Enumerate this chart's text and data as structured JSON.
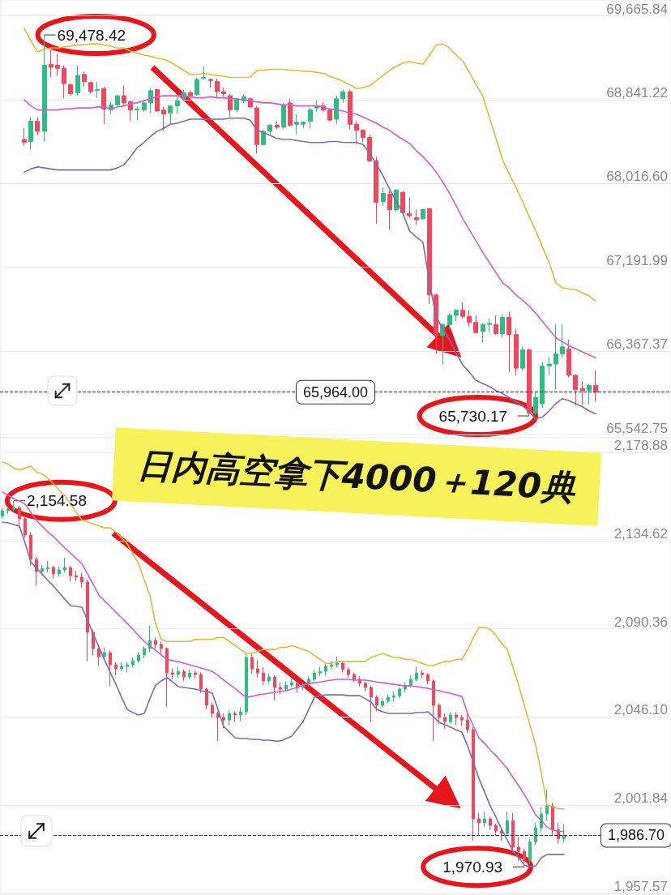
{
  "chart_data": [
    {
      "type": "candlestick",
      "title": "日内高空拿下4000＋120典",
      "categories": [
        null,
        null,
        null,
        null,
        null,
        null,
        null,
        null,
        null,
        null,
        null,
        null,
        null,
        null,
        null,
        null,
        null,
        null,
        null,
        null,
        null,
        null,
        null,
        null,
        null,
        null,
        null,
        null,
        null,
        null,
        null,
        null,
        null,
        null,
        null,
        null,
        null,
        null,
        null,
        null,
        null,
        null,
        null,
        null,
        null,
        null,
        null,
        null,
        null,
        null,
        null,
        null,
        null,
        null,
        null,
        null,
        null,
        null,
        null,
        null,
        null,
        null,
        null,
        null,
        null,
        null,
        null,
        null,
        null,
        null,
        null,
        null,
        null,
        null,
        null,
        null,
        null,
        null,
        null,
        null,
        null,
        null,
        null,
        null,
        null,
        null,
        null
      ],
      "ohlc": [
        [
          68450,
          68560,
          68390,
          68420
        ],
        [
          68430,
          68670,
          68350,
          68630
        ],
        [
          68630,
          68670,
          68490,
          68530
        ],
        [
          68530,
          69478.42,
          68430,
          69180
        ],
        [
          69190,
          69330,
          69060,
          69160
        ],
        [
          69180,
          69290,
          69080,
          69150
        ],
        [
          69150,
          69180,
          68860,
          69000
        ],
        [
          68990,
          69000,
          68880,
          68900
        ],
        [
          68910,
          69180,
          68880,
          69080
        ],
        [
          69090,
          69120,
          68970,
          69020
        ],
        [
          69010,
          69020,
          68900,
          68920
        ],
        [
          68930,
          69020,
          68860,
          68940
        ],
        [
          68950,
          68970,
          68600,
          68750
        ],
        [
          68740,
          68820,
          68700,
          68790
        ],
        [
          68790,
          68880,
          68780,
          68880
        ],
        [
          68880,
          68980,
          68790,
          68810
        ],
        [
          68820,
          68830,
          68630,
          68740
        ],
        [
          68740,
          68780,
          68640,
          68750
        ],
        [
          68740,
          68820,
          68720,
          68810
        ],
        [
          68810,
          68950,
          68710,
          68930
        ],
        [
          68940,
          68950,
          68720,
          68730
        ],
        [
          68740,
          68770,
          68530,
          68700
        ],
        [
          68710,
          68780,
          68600,
          68780
        ],
        [
          68780,
          68870,
          68700,
          68830
        ],
        [
          68850,
          68940,
          68830,
          68910
        ],
        [
          68910,
          68930,
          68850,
          68880
        ],
        [
          68890,
          69060,
          68880,
          69040
        ],
        [
          69050,
          69170,
          69040,
          69060
        ],
        [
          69040,
          69050,
          68960,
          69030
        ],
        [
          69020,
          69050,
          68860,
          68920
        ],
        [
          68920,
          68960,
          68870,
          68900
        ],
        [
          68880,
          68900,
          68670,
          68740
        ],
        [
          68740,
          68850,
          68720,
          68840
        ],
        [
          68830,
          68890,
          68810,
          68870
        ],
        [
          68850,
          68860,
          68760,
          68770
        ],
        [
          68760,
          68780,
          68310,
          68400
        ],
        [
          68400,
          68550,
          68390,
          68530
        ],
        [
          68530,
          68600,
          68500,
          68590
        ],
        [
          68590,
          68630,
          68550,
          68570
        ],
        [
          68570,
          68810,
          68550,
          68790
        ],
        [
          68810,
          68850,
          68580,
          68590
        ],
        [
          68600,
          68700,
          68500,
          68620
        ],
        [
          68600,
          68630,
          68560,
          68620
        ],
        [
          68630,
          68760,
          68560,
          68740
        ],
        [
          68760,
          68830,
          68720,
          68780
        ],
        [
          68780,
          68820,
          68720,
          68740
        ],
        [
          68740,
          68750,
          68630,
          68640
        ],
        [
          68650,
          68880,
          68600,
          68850
        ],
        [
          68850,
          68940,
          68810,
          68920
        ],
        [
          68920,
          68940,
          68550,
          68600
        ],
        [
          68600,
          68630,
          68400,
          68540
        ],
        [
          68540,
          68550,
          68420,
          68470
        ],
        [
          68470,
          68500,
          68230,
          68240
        ],
        [
          68240,
          68280,
          67620,
          67830
        ],
        [
          67840,
          67980,
          67800,
          67920
        ],
        [
          67910,
          67950,
          67560,
          67760
        ],
        [
          67760,
          67960,
          67740,
          67950
        ],
        [
          67930,
          67940,
          67720,
          67730
        ],
        [
          67720,
          67880,
          67680,
          67700
        ],
        [
          67680,
          67760,
          67610,
          67660
        ],
        [
          67670,
          67770,
          67660,
          67760
        ],
        [
          67770,
          67770,
          66830,
          66920
        ],
        [
          66920,
          66930,
          66340,
          66520
        ],
        [
          66520,
          66640,
          66240,
          66630
        ],
        [
          66630,
          66740,
          66590,
          66720
        ],
        [
          66720,
          66780,
          66660,
          66770
        ],
        [
          66770,
          66850,
          66690,
          66710
        ],
        [
          66710,
          66770,
          66610,
          66650
        ],
        [
          66650,
          66720,
          66540,
          66550
        ],
        [
          66560,
          66640,
          66450,
          66630
        ],
        [
          66630,
          66690,
          66560,
          66640
        ],
        [
          66630,
          66720,
          66530,
          66540
        ],
        [
          66540,
          66730,
          66500,
          66700
        ],
        [
          66700,
          66760,
          66160,
          66530
        ],
        [
          66530,
          66590,
          66130,
          66200
        ],
        [
          66200,
          66410,
          66180,
          66380
        ],
        [
          66380,
          66390,
          65730.17,
          65760
        ],
        [
          65760,
          65960,
          65740,
          65910
        ],
        [
          65850,
          66260,
          65810,
          66220
        ],
        [
          66220,
          66310,
          66130,
          66240
        ],
        [
          66240,
          66630,
          65990,
          66340
        ],
        [
          66340,
          66630,
          66300,
          66410
        ],
        [
          66390,
          66480,
          66110,
          66130
        ],
        [
          66130,
          66140,
          65830,
          65990
        ],
        [
          66000,
          66070,
          65840,
          65980
        ],
        [
          65980,
          66040,
          65840,
          66030
        ],
        [
          66030,
          66180,
          65870,
          65964
        ]
      ],
      "series": [
        {
          "type": "line",
          "color": "#e2b93b",
          "values": [
            69540,
            69420,
            69310,
            69340,
            69350,
            69350,
            69360,
            69370,
            69380,
            69380,
            69390,
            69390,
            69380,
            69370,
            69350,
            69350,
            69320,
            69300,
            69280,
            69270,
            69250,
            69240,
            69210,
            69170,
            69130,
            69090,
            69090,
            69100,
            69090,
            69080,
            69070,
            69060,
            69060,
            69060,
            69060,
            69130,
            69130,
            69140,
            69140,
            69140,
            69130,
            69130,
            69120,
            69120,
            69110,
            69100,
            69070,
            69050,
            69020,
            68990,
            68950,
            68960,
            68980,
            69030,
            69080,
            69130,
            69170,
            69200,
            69220,
            69200,
            69190,
            69280,
            69380,
            69390,
            69350,
            69280,
            69220,
            69110,
            68990,
            68880,
            68670,
            68460,
            68250,
            68110,
            67980,
            67840,
            67690,
            67550,
            67390,
            67240,
            67040,
            66990,
            66980,
            66970,
            66940,
            66910,
            66860
          ]
        },
        {
          "type": "line",
          "color": "#d45fc2",
          "values": [
            68840,
            68780,
            68740,
            68740,
            68740,
            68740,
            68750,
            68750,
            68760,
            68760,
            68760,
            68770,
            68770,
            68750,
            68770,
            68780,
            68800,
            68810,
            68830,
            68850,
            68870,
            68880,
            68880,
            68880,
            68880,
            68870,
            68860,
            68860,
            68870,
            68860,
            68860,
            68850,
            68850,
            68840,
            68830,
            68820,
            68810,
            68810,
            68800,
            68790,
            68790,
            68780,
            68780,
            68780,
            68780,
            68770,
            68750,
            68740,
            68730,
            68710,
            68700,
            68670,
            68640,
            68610,
            68570,
            68540,
            68490,
            68450,
            68410,
            68340,
            68280,
            68210,
            68130,
            68030,
            67920,
            67800,
            67670,
            67560,
            67450,
            67340,
            67240,
            67140,
            67040,
            66990,
            66920,
            66870,
            66810,
            66740,
            66660,
            66580,
            66500,
            66460,
            66420,
            66390,
            66360,
            66330,
            66300
          ]
        },
        {
          "type": "line",
          "color": "#7b6db3",
          "values": [
            68130,
            68160,
            68180,
            68170,
            68160,
            68150,
            68150,
            68150,
            68150,
            68150,
            68150,
            68150,
            68150,
            68150,
            68170,
            68200,
            68280,
            68370,
            68420,
            68480,
            68530,
            68560,
            68600,
            68610,
            68630,
            68650,
            68650,
            68650,
            68650,
            68650,
            68650,
            68660,
            68660,
            68660,
            68640,
            68540,
            68520,
            68490,
            68460,
            68450,
            68450,
            68440,
            68430,
            68420,
            68420,
            68420,
            68430,
            68430,
            68420,
            68420,
            68420,
            68400,
            68310,
            68210,
            68090,
            67960,
            67840,
            67720,
            67550,
            67490,
            67440,
            67040,
            66700,
            66590,
            66480,
            66350,
            66230,
            66160,
            66080,
            66050,
            66020,
            65980,
            65950,
            65910,
            65870,
            65830,
            65770,
            65700,
            65720,
            65780,
            65850,
            65900,
            65880,
            65850,
            65820,
            65780,
            65750
          ]
        }
      ],
      "ylim": [
        65515,
        69822
      ],
      "yticks": [
        {
          "value": 65542.75,
          "label": "65,542.75"
        },
        {
          "value": 66367.37,
          "label": "66,367.37"
        },
        {
          "value": 67191.99,
          "label": "67,191.99"
        },
        {
          "value": 68016.6,
          "label": "68,016.60"
        },
        {
          "value": 68841.22,
          "label": "68,841.22"
        },
        {
          "value": 69665.84,
          "label": "69,665.84"
        }
      ],
      "grid": "y",
      "tick_labels": "y",
      "marker": "none",
      "line_style": "solid",
      "annotations": [
        "69,478.42",
        "65,730.17"
      ],
      "ref_lines": [
        {
          "axis": "y",
          "value": 65964,
          "label": "65,964.00",
          "line_style": "dashed",
          "color": "#333333"
        }
      ]
    },
    {
      "type": "candlestick",
      "categories": [
        null,
        null,
        null,
        null,
        null,
        null,
        null,
        null,
        null,
        null,
        null,
        null,
        null,
        null,
        null,
        null,
        null,
        null,
        null,
        null,
        null,
        null,
        null,
        null,
        null,
        null,
        null,
        null,
        null,
        null,
        null,
        null,
        null,
        null,
        null,
        null,
        null,
        null,
        null,
        null,
        null,
        null,
        null,
        null,
        null,
        null,
        null,
        null,
        null,
        null,
        null,
        null,
        null,
        null,
        null,
        null,
        null,
        null,
        null,
        null,
        null,
        null,
        null,
        null,
        null,
        null,
        null,
        null,
        null,
        null,
        null,
        null,
        null,
        null,
        null,
        null,
        null,
        null,
        null,
        null,
        null,
        null,
        null,
        null,
        null,
        null,
        null,
        null,
        null,
        null,
        null,
        null,
        null,
        null,
        null,
        null,
        null,
        null,
        null,
        null
      ],
      "ohlc": [
        [
          2147.0,
          2151.0,
          2145.5,
          2149.6
        ],
        [
          2149.6,
          2152.0,
          2148.0,
          2150.4
        ],
        [
          2150.4,
          2154.58,
          2149.0,
          2151.2
        ],
        [
          2151.2,
          2152.0,
          2141.0,
          2145.5
        ],
        [
          2145.5,
          2147.0,
          2136.0,
          2137.4
        ],
        [
          2137.4,
          2139.0,
          2122.0,
          2125.2
        ],
        [
          2125.2,
          2126.5,
          2112.0,
          2119.1
        ],
        [
          2119.1,
          2122.5,
          2117.0,
          2120.5
        ],
        [
          2120.5,
          2124.5,
          2119.0,
          2121.1
        ],
        [
          2121.1,
          2122.0,
          2115.5,
          2117.9
        ],
        [
          2117.9,
          2121.5,
          2116.5,
          2119.9
        ],
        [
          2119.9,
          2126.0,
          2118.5,
          2121.1
        ],
        [
          2121.1,
          2122.0,
          2114.0,
          2117.0
        ],
        [
          2117.0,
          2119.5,
          2114.5,
          2116.2
        ],
        [
          2116.2,
          2118.5,
          2111.0,
          2113.8
        ],
        [
          2113.8,
          2115.0,
          2074.0,
          2088.6
        ],
        [
          2088.6,
          2090.0,
          2077.0,
          2080.4
        ],
        [
          2080.4,
          2082.0,
          2072.0,
          2076.4
        ],
        [
          2076.4,
          2081.0,
          2075.0,
          2078.4
        ],
        [
          2078.4,
          2079.5,
          2061.5,
          2072.3
        ],
        [
          2072.3,
          2073.5,
          2067.0,
          2070.3
        ],
        [
          2070.3,
          2073.5,
          2069.0,
          2071.5
        ],
        [
          2071.5,
          2074.0,
          2068.5,
          2072.3
        ],
        [
          2072.3,
          2076.0,
          2071.0,
          2074.3
        ],
        [
          2074.3,
          2078.5,
          2073.0,
          2077.2
        ],
        [
          2077.2,
          2081.5,
          2075.5,
          2080.4
        ],
        [
          2080.4,
          2092.0,
          2078.5,
          2084.5
        ],
        [
          2084.5,
          2086.0,
          2080.5,
          2082.5
        ],
        [
          2082.5,
          2084.0,
          2078.0,
          2080.4
        ],
        [
          2080.4,
          2081.0,
          2051.0,
          2068.2
        ],
        [
          2068.2,
          2070.5,
          2065.0,
          2067.4
        ],
        [
          2067.4,
          2071.0,
          2066.0,
          2069.0
        ],
        [
          2069.0,
          2070.0,
          2064.0,
          2066.2
        ],
        [
          2066.2,
          2070.0,
          2065.0,
          2068.2
        ],
        [
          2068.2,
          2069.5,
          2065.5,
          2067.4
        ],
        [
          2067.4,
          2068.5,
          2058.0,
          2060.1
        ],
        [
          2060.1,
          2061.0,
          2050.0,
          2052.0
        ],
        [
          2052.0,
          2053.5,
          2045.5,
          2047.9
        ],
        [
          2047.9,
          2049.0,
          2034.0,
          2045.9
        ],
        [
          2045.9,
          2048.0,
          2040.5,
          2044.6
        ],
        [
          2044.6,
          2049.5,
          2042.0,
          2047.9
        ],
        [
          2047.9,
          2049.0,
          2043.5,
          2047.1
        ],
        [
          2047.1,
          2051.0,
          2044.0,
          2048.7
        ],
        [
          2048.7,
          2078.5,
          2047.0,
          2076.0
        ],
        [
          2076.0,
          2077.5,
          2068.0,
          2070.3
        ],
        [
          2070.3,
          2074.5,
          2066.0,
          2068.2
        ],
        [
          2068.2,
          2071.0,
          2062.0,
          2064.2
        ],
        [
          2064.2,
          2068.0,
          2063.0,
          2066.2
        ],
        [
          2066.2,
          2067.0,
          2054.5,
          2060.9
        ],
        [
          2060.9,
          2063.5,
          2057.5,
          2060.1
        ],
        [
          2060.1,
          2064.0,
          2059.0,
          2062.1
        ],
        [
          2062.1,
          2065.5,
          2061.0,
          2063.4
        ],
        [
          2063.4,
          2064.0,
          2058.5,
          2060.9
        ],
        [
          2060.9,
          2063.5,
          2059.5,
          2062.5
        ],
        [
          2062.5,
          2066.5,
          2061.5,
          2065.0
        ],
        [
          2065.0,
          2069.5,
          2064.0,
          2068.2
        ],
        [
          2068.2,
          2071.0,
          2066.5,
          2069.0
        ],
        [
          2069.0,
          2073.0,
          2067.0,
          2071.5
        ],
        [
          2071.5,
          2074.5,
          2070.0,
          2072.3
        ],
        [
          2072.3,
          2076.5,
          2071.0,
          2073.1
        ],
        [
          2073.1,
          2074.0,
          2068.5,
          2069.9
        ],
        [
          2069.9,
          2071.0,
          2066.0,
          2067.4
        ],
        [
          2067.4,
          2068.5,
          2063.5,
          2065.0
        ],
        [
          2065.0,
          2066.5,
          2061.5,
          2063.0
        ],
        [
          2063.0,
          2064.0,
          2059.0,
          2060.9
        ],
        [
          2060.9,
          2062.0,
          2043.5,
          2056.0
        ],
        [
          2056.0,
          2057.0,
          2049.0,
          2052.0
        ],
        [
          2052.0,
          2055.5,
          2051.0,
          2054.0
        ],
        [
          2054.0,
          2057.5,
          2053.0,
          2056.0
        ],
        [
          2056.0,
          2059.0,
          2054.0,
          2056.8
        ],
        [
          2056.8,
          2061.0,
          2055.5,
          2060.1
        ],
        [
          2060.1,
          2063.5,
          2058.5,
          2062.1
        ],
        [
          2062.1,
          2067.0,
          2061.0,
          2065.0
        ],
        [
          2065.0,
          2071.0,
          2064.0,
          2068.2
        ],
        [
          2068.2,
          2069.5,
          2065.5,
          2067.4
        ],
        [
          2067.4,
          2068.0,
          2062.5,
          2064.2
        ],
        [
          2064.2,
          2065.0,
          2034.0,
          2052.0
        ],
        [
          2052.0,
          2053.0,
          2042.5,
          2045.9
        ],
        [
          2045.9,
          2048.0,
          2040.0,
          2043.8
        ],
        [
          2043.8,
          2048.5,
          2042.5,
          2047.1
        ],
        [
          2047.1,
          2048.5,
          2042.0,
          2045.9
        ],
        [
          2045.9,
          2047.0,
          2041.5,
          2044.6
        ],
        [
          2044.6,
          2048.0,
          2038.0,
          2039.7
        ],
        [
          2039.7,
          2041.0,
          1984.0,
          1995.0
        ],
        [
          1995.0,
          1998.0,
          1987.0,
          1993.0
        ],
        [
          1993.0,
          1998.5,
          1991.0,
          1995.0
        ],
        [
          1995.0,
          1996.0,
          1989.5,
          1991.7
        ],
        [
          1991.7,
          1992.5,
          1986.5,
          1988.9
        ],
        [
          1988.9,
          1990.0,
          1984.0,
          1987.7
        ],
        [
          1987.7,
          1998.5,
          1986.5,
          1994.0
        ],
        [
          1994.0,
          1998.0,
          1978.0,
          1980.8
        ],
        [
          1980.8,
          1986.0,
          1974.0,
          1978.7
        ],
        [
          1978.7,
          1980.0,
          1970.93,
          1974.0
        ],
        [
          1974.0,
          1985.0,
          1972.5,
          1983.5
        ],
        [
          1983.5,
          1993.0,
          1981.5,
          1990.5
        ],
        [
          1990.5,
          2001.0,
          1988.0,
          1997.5
        ],
        [
          1997.5,
          2010.0,
          1994.0,
          2001.5
        ],
        [
          2001.5,
          2003.0,
          1986.5,
          1989.5
        ],
        [
          1989.5,
          1993.0,
          1982.5,
          1985.0
        ],
        [
          1985.0,
          1992.5,
          1983.0,
          1986.7
        ]
      ],
      "series": [
        {
          "type": "line",
          "color": "#e2b93b",
          "values": [
            2174,
            2173,
            2171,
            2170,
            2171,
            2172,
            2169,
            2168,
            2166,
            2163,
            2160,
            2157,
            2153,
            2149,
            2145,
            2144,
            2143,
            2142,
            2141,
            2141,
            2139,
            2136,
            2133,
            2128,
            2123,
            2115,
            2107,
            2093,
            2085,
            2084,
            2084,
            2084,
            2084,
            2084,
            2085,
            2085,
            2085,
            2085,
            2086,
            2086,
            2084,
            2082,
            2080,
            2078,
            2078,
            2079,
            2080,
            2080,
            2080,
            2081,
            2081,
            2082,
            2081,
            2080,
            2079,
            2077,
            2075,
            2073,
            2073,
            2074,
            2074,
            2074,
            2074,
            2074,
            2074,
            2076,
            2077,
            2078,
            2077,
            2076,
            2076,
            2075,
            2075,
            2074,
            2073,
            2072,
            2072,
            2073,
            2074,
            2074,
            2075,
            2075,
            2080,
            2086,
            2091,
            2091,
            2090,
            2087,
            2083,
            2080,
            2071,
            2062,
            2052,
            2042,
            2032,
            2018,
            2002,
            2001,
            2000,
            2000
          ]
        },
        {
          "type": "line",
          "color": "#d45fc2",
          "values": [
            2159.0,
            2157.3,
            2155.7,
            2154.5,
            2152.8,
            2148.8,
            2144.7,
            2141.8,
            2139.0,
            2136.6,
            2133.7,
            2130.9,
            2128.4,
            2125.6,
            2123.1,
            2117.9,
            2112.6,
            2107.3,
            2104.4,
            2101.6,
            2098.7,
            2095.9,
            2093.0,
            2090.2,
            2086.9,
            2084.1,
            2081.7,
            2079.6,
            2077.2,
            2075.1,
            2074.3,
            2073.9,
            2073.1,
            2072.3,
            2071.5,
            2070.7,
            2069.9,
            2069.0,
            2067.0,
            2064.6,
            2062.5,
            2060.5,
            2058.0,
            2056.0,
            2056.4,
            2057.2,
            2057.6,
            2058.0,
            2058.5,
            2058.9,
            2059.3,
            2060.1,
            2060.9,
            2062.1,
            2062.9,
            2063.3,
            2063.7,
            2064.2,
            2064.6,
            2065.0,
            2065.0,
            2065.0,
            2064.6,
            2064.6,
            2064.6,
            2064.2,
            2063.7,
            2063.3,
            2062.9,
            2062.5,
            2062.1,
            2061.7,
            2061.7,
            2061.3,
            2060.9,
            2060.5,
            2059.7,
            2059.3,
            2058.5,
            2058.0,
            2057.2,
            2056.4,
            2047.9,
            2041.8,
            2035.7,
            2032.8,
            2029.6,
            2026.7,
            2023.5,
            2020.2,
            2015.7,
            2011.7,
            2007.2,
            2002.3,
            1997.0,
            1994.2,
            1990.9,
            1989.3,
            1988.9,
            1988.5
          ]
        },
        {
          "type": "line",
          "color": "#7b6db3",
          "values": [
            2143.9,
            2143.5,
            2142.7,
            2141.9,
            2133.3,
            2124.0,
            2120.7,
            2117.9,
            2114.6,
            2111.8,
            2108.5,
            2105.2,
            2102.0,
            2101.6,
            2101.2,
            2094.7,
            2087.8,
            2081.2,
            2074.7,
            2068.6,
            2062.5,
            2056.0,
            2049.9,
            2048.3,
            2047.1,
            2047.9,
            2055.2,
            2062.1,
            2064.2,
            2065.8,
            2063.7,
            2061.3,
            2060.9,
            2060.5,
            2060.1,
            2059.3,
            2058.9,
            2058.0,
            2049.9,
            2041.4,
            2038.5,
            2035.7,
            2035.3,
            2035.3,
            2034.9,
            2034.9,
            2034.5,
            2034.5,
            2034.1,
            2034.1,
            2035.3,
            2036.5,
            2040.2,
            2043.8,
            2049.9,
            2056.0,
            2056.8,
            2057.2,
            2057.2,
            2057.2,
            2057.2,
            2056.8,
            2056.8,
            2056.8,
            2055.2,
            2053.6,
            2049.9,
            2048.7,
            2047.9,
            2047.9,
            2047.9,
            2047.9,
            2047.9,
            2048.3,
            2048.3,
            2048.7,
            2046.3,
            2043.4,
            2042.2,
            2041.0,
            2039.7,
            2038.5,
            2031.6,
            2023.5,
            2015.3,
            2008.4,
            2001.5,
            1995.8,
            1989.7,
            1984.4,
            1978.7,
            1975.5,
            1971.8,
            1971.0,
            1971.4,
            1975.5,
            1977.1,
            1977.1,
            1977.1,
            1977.1
          ]
        }
      ],
      "ylim": [
        1956.8,
        2186.2
      ],
      "yticks": [
        {
          "value": 1957.57,
          "label": "1,957.57"
        },
        {
          "value": 2001.84,
          "label": "2,001.84"
        },
        {
          "value": 2046.1,
          "label": "2,046.10"
        },
        {
          "value": 2090.36,
          "label": "2,090.36"
        },
        {
          "value": 2134.62,
          "label": "2,134.62"
        },
        {
          "value": 2178.88,
          "label": "2,178.88"
        }
      ],
      "grid": "y",
      "tick_labels": "y",
      "marker": "none",
      "line_style": "solid",
      "annotations": [
        "2,154.58",
        "1,970.93"
      ],
      "ref_lines": [
        {
          "axis": "y",
          "value": 1986.7,
          "label": "1,986.70",
          "line_style": "dashed",
          "color": "#333333"
        }
      ]
    }
  ]
}
